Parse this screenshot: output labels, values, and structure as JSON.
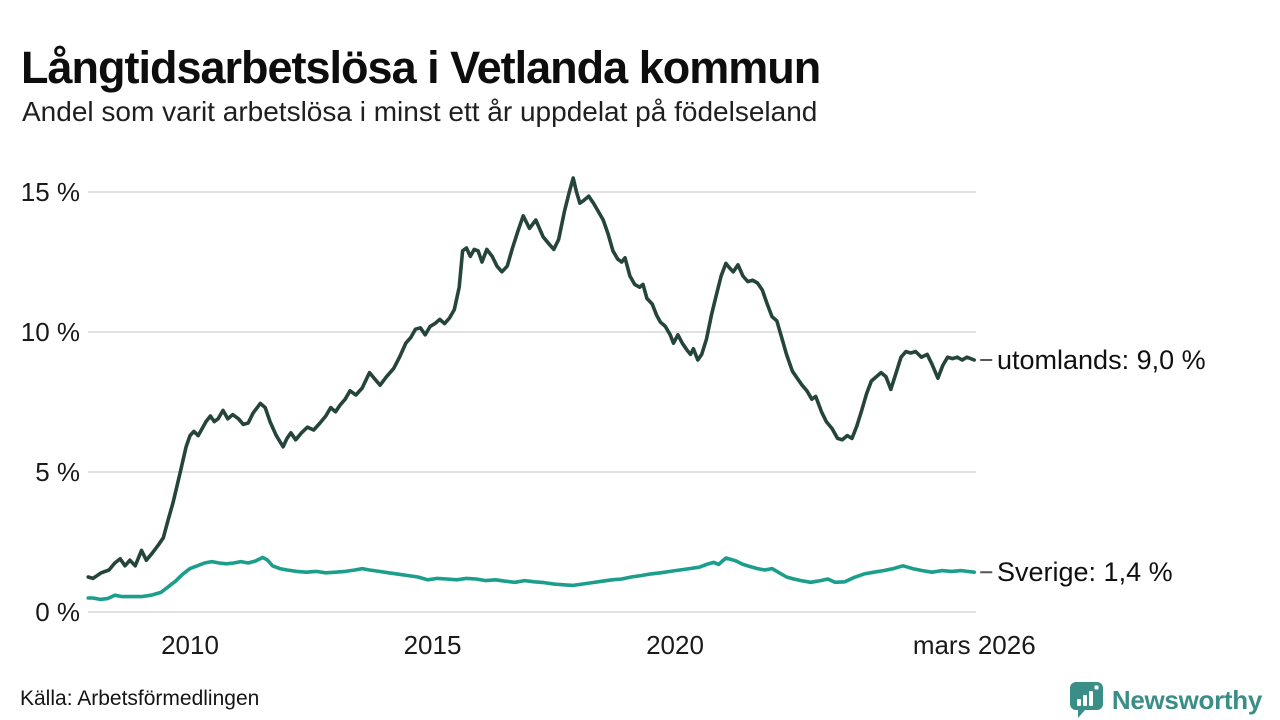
{
  "header": {
    "title": "Långtidsarbetslösa i Vetlanda kommun",
    "subtitle": "Andel som varit arbetslösa i minst ett år uppdelat på födelseland"
  },
  "footer": {
    "source": "Källa: Arbetsförmedlingen",
    "brand": "Newsworthy"
  },
  "icons": {
    "brand_logo": "bar-chart-speech-bubble-icon"
  },
  "colors": {
    "series_utomlands": "#25453c",
    "series_sverige": "#1c9e8c",
    "gridline": "#e0e0e0",
    "label_connector": "#555555",
    "text": "#161616",
    "brand": "#3b8e87"
  },
  "chart_data": {
    "type": "line",
    "title": "Långtidsarbetslösa i Vetlanda kommun",
    "subtitle": "Andel som varit arbetslösa i minst ett år uppdelat på födelseland",
    "xlabel": "",
    "ylabel": "",
    "unit": "%",
    "xlim": [
      2007.9,
      2026.3
    ],
    "ylim": [
      0,
      16
    ],
    "grid": "horizontal",
    "legend_position": "right-of-line-end",
    "yticks": [
      {
        "value": 15,
        "label": "15 %"
      },
      {
        "value": 10,
        "label": "10 %"
      },
      {
        "value": 5,
        "label": "5 %"
      },
      {
        "value": 0,
        "label": "0 %"
      }
    ],
    "xticks": [
      {
        "value": 2010,
        "label": "2010"
      },
      {
        "value": 2015,
        "label": "2015"
      },
      {
        "value": 2020,
        "label": "2020"
      },
      {
        "value": 2026.17,
        "label": "mars 2026"
      }
    ],
    "source": "Källa: Arbetsförmedlingen",
    "series": [
      {
        "name": "utomlands",
        "label": "utomlands: 9,0 %",
        "last_value_label": "9,0 %",
        "color": "#25453c",
        "points": [
          [
            2007.9,
            1.25
          ],
          [
            2008.0,
            1.2
          ],
          [
            2008.17,
            1.4
          ],
          [
            2008.33,
            1.5
          ],
          [
            2008.45,
            1.75
          ],
          [
            2008.56,
            1.9
          ],
          [
            2008.66,
            1.65
          ],
          [
            2008.76,
            1.85
          ],
          [
            2008.87,
            1.65
          ],
          [
            2009.0,
            2.2
          ],
          [
            2009.1,
            1.85
          ],
          [
            2009.22,
            2.1
          ],
          [
            2009.35,
            2.4
          ],
          [
            2009.45,
            2.65
          ],
          [
            2009.55,
            3.3
          ],
          [
            2009.65,
            3.9
          ],
          [
            2009.8,
            5.0
          ],
          [
            2009.92,
            5.9
          ],
          [
            2010.0,
            6.3
          ],
          [
            2010.08,
            6.45
          ],
          [
            2010.17,
            6.3
          ],
          [
            2010.25,
            6.55
          ],
          [
            2010.33,
            6.8
          ],
          [
            2010.42,
            7.0
          ],
          [
            2010.5,
            6.8
          ],
          [
            2010.58,
            6.9
          ],
          [
            2010.68,
            7.2
          ],
          [
            2010.78,
            6.9
          ],
          [
            2010.88,
            7.05
          ],
          [
            2011.0,
            6.9
          ],
          [
            2011.1,
            6.7
          ],
          [
            2011.2,
            6.75
          ],
          [
            2011.3,
            7.1
          ],
          [
            2011.45,
            7.45
          ],
          [
            2011.55,
            7.3
          ],
          [
            2011.65,
            6.8
          ],
          [
            2011.78,
            6.3
          ],
          [
            2011.92,
            5.9
          ],
          [
            2012.0,
            6.2
          ],
          [
            2012.08,
            6.4
          ],
          [
            2012.18,
            6.15
          ],
          [
            2012.3,
            6.4
          ],
          [
            2012.42,
            6.6
          ],
          [
            2012.55,
            6.5
          ],
          [
            2012.68,
            6.75
          ],
          [
            2012.8,
            7.0
          ],
          [
            2012.9,
            7.3
          ],
          [
            2013.0,
            7.15
          ],
          [
            2013.1,
            7.4
          ],
          [
            2013.2,
            7.6
          ],
          [
            2013.3,
            7.9
          ],
          [
            2013.42,
            7.75
          ],
          [
            2013.55,
            8.0
          ],
          [
            2013.7,
            8.55
          ],
          [
            2013.82,
            8.3
          ],
          [
            2013.92,
            8.1
          ],
          [
            2014.05,
            8.4
          ],
          [
            2014.2,
            8.7
          ],
          [
            2014.32,
            9.1
          ],
          [
            2014.45,
            9.6
          ],
          [
            2014.55,
            9.8
          ],
          [
            2014.65,
            10.1
          ],
          [
            2014.75,
            10.15
          ],
          [
            2014.85,
            9.9
          ],
          [
            2014.95,
            10.2
          ],
          [
            2015.05,
            10.3
          ],
          [
            2015.15,
            10.45
          ],
          [
            2015.25,
            10.3
          ],
          [
            2015.35,
            10.5
          ],
          [
            2015.45,
            10.8
          ],
          [
            2015.55,
            11.6
          ],
          [
            2015.62,
            12.9
          ],
          [
            2015.7,
            13.0
          ],
          [
            2015.78,
            12.7
          ],
          [
            2015.86,
            12.95
          ],
          [
            2015.94,
            12.9
          ],
          [
            2016.02,
            12.5
          ],
          [
            2016.12,
            12.95
          ],
          [
            2016.23,
            12.7
          ],
          [
            2016.33,
            12.35
          ],
          [
            2016.43,
            12.15
          ],
          [
            2016.54,
            12.35
          ],
          [
            2016.65,
            13.0
          ],
          [
            2016.76,
            13.6
          ],
          [
            2016.87,
            14.15
          ],
          [
            2017.0,
            13.7
          ],
          [
            2017.13,
            14.0
          ],
          [
            2017.28,
            13.4
          ],
          [
            2017.4,
            13.15
          ],
          [
            2017.5,
            12.95
          ],
          [
            2017.6,
            13.3
          ],
          [
            2017.72,
            14.3
          ],
          [
            2017.82,
            15.0
          ],
          [
            2017.9,
            15.5
          ],
          [
            2017.97,
            15.0
          ],
          [
            2018.04,
            14.6
          ],
          [
            2018.12,
            14.7
          ],
          [
            2018.22,
            14.85
          ],
          [
            2018.32,
            14.6
          ],
          [
            2018.42,
            14.3
          ],
          [
            2018.52,
            14.0
          ],
          [
            2018.62,
            13.5
          ],
          [
            2018.72,
            12.9
          ],
          [
            2018.82,
            12.6
          ],
          [
            2018.9,
            12.5
          ],
          [
            2018.97,
            12.65
          ],
          [
            2019.07,
            12.0
          ],
          [
            2019.17,
            11.7
          ],
          [
            2019.27,
            11.6
          ],
          [
            2019.34,
            11.7
          ],
          [
            2019.42,
            11.2
          ],
          [
            2019.53,
            11.0
          ],
          [
            2019.62,
            10.6
          ],
          [
            2019.7,
            10.35
          ],
          [
            2019.8,
            10.2
          ],
          [
            2019.9,
            9.9
          ],
          [
            2019.97,
            9.6
          ],
          [
            2020.06,
            9.9
          ],
          [
            2020.15,
            9.6
          ],
          [
            2020.25,
            9.35
          ],
          [
            2020.32,
            9.2
          ],
          [
            2020.38,
            9.4
          ],
          [
            2020.47,
            9.0
          ],
          [
            2020.55,
            9.2
          ],
          [
            2020.65,
            9.75
          ],
          [
            2020.75,
            10.6
          ],
          [
            2020.85,
            11.3
          ],
          [
            2020.95,
            12.0
          ],
          [
            2021.05,
            12.45
          ],
          [
            2021.12,
            12.3
          ],
          [
            2021.2,
            12.15
          ],
          [
            2021.3,
            12.4
          ],
          [
            2021.4,
            12.0
          ],
          [
            2021.5,
            11.8
          ],
          [
            2021.6,
            11.85
          ],
          [
            2021.7,
            11.75
          ],
          [
            2021.8,
            11.5
          ],
          [
            2021.9,
            11.0
          ],
          [
            2022.0,
            10.55
          ],
          [
            2022.1,
            10.4
          ],
          [
            2022.2,
            9.8
          ],
          [
            2022.3,
            9.2
          ],
          [
            2022.42,
            8.6
          ],
          [
            2022.52,
            8.35
          ],
          [
            2022.62,
            8.1
          ],
          [
            2022.72,
            7.9
          ],
          [
            2022.82,
            7.6
          ],
          [
            2022.9,
            7.7
          ],
          [
            2023.02,
            7.15
          ],
          [
            2023.12,
            6.8
          ],
          [
            2023.24,
            6.55
          ],
          [
            2023.35,
            6.2
          ],
          [
            2023.45,
            6.15
          ],
          [
            2023.55,
            6.3
          ],
          [
            2023.65,
            6.2
          ],
          [
            2023.75,
            6.65
          ],
          [
            2023.85,
            7.2
          ],
          [
            2023.95,
            7.8
          ],
          [
            2024.05,
            8.25
          ],
          [
            2024.15,
            8.4
          ],
          [
            2024.25,
            8.55
          ],
          [
            2024.35,
            8.4
          ],
          [
            2024.45,
            7.95
          ],
          [
            2024.56,
            8.55
          ],
          [
            2024.66,
            9.1
          ],
          [
            2024.76,
            9.3
          ],
          [
            2024.86,
            9.25
          ],
          [
            2024.96,
            9.3
          ],
          [
            2025.08,
            9.1
          ],
          [
            2025.2,
            9.2
          ],
          [
            2025.3,
            8.85
          ],
          [
            2025.42,
            8.35
          ],
          [
            2025.52,
            8.8
          ],
          [
            2025.62,
            9.1
          ],
          [
            2025.72,
            9.05
          ],
          [
            2025.82,
            9.1
          ],
          [
            2025.92,
            9.0
          ],
          [
            2026.02,
            9.1
          ],
          [
            2026.17,
            9.0
          ]
        ]
      },
      {
        "name": "Sverige",
        "label": "Sverige: 1,4 %",
        "last_value_label": "1,4 %",
        "color": "#1c9e8c",
        "points": [
          [
            2007.9,
            0.5
          ],
          [
            2008.0,
            0.5
          ],
          [
            2008.15,
            0.45
          ],
          [
            2008.3,
            0.48
          ],
          [
            2008.45,
            0.6
          ],
          [
            2008.6,
            0.55
          ],
          [
            2008.8,
            0.55
          ],
          [
            2009.0,
            0.55
          ],
          [
            2009.2,
            0.6
          ],
          [
            2009.4,
            0.7
          ],
          [
            2009.55,
            0.9
          ],
          [
            2009.7,
            1.1
          ],
          [
            2009.85,
            1.35
          ],
          [
            2010.0,
            1.55
          ],
          [
            2010.15,
            1.65
          ],
          [
            2010.3,
            1.75
          ],
          [
            2010.45,
            1.8
          ],
          [
            2010.6,
            1.75
          ],
          [
            2010.75,
            1.72
          ],
          [
            2010.9,
            1.75
          ],
          [
            2011.05,
            1.8
          ],
          [
            2011.2,
            1.75
          ],
          [
            2011.35,
            1.82
          ],
          [
            2011.5,
            1.95
          ],
          [
            2011.6,
            1.85
          ],
          [
            2011.7,
            1.65
          ],
          [
            2011.85,
            1.55
          ],
          [
            2012.0,
            1.5
          ],
          [
            2012.2,
            1.45
          ],
          [
            2012.4,
            1.42
          ],
          [
            2012.6,
            1.45
          ],
          [
            2012.8,
            1.4
          ],
          [
            2013.0,
            1.42
          ],
          [
            2013.2,
            1.45
          ],
          [
            2013.4,
            1.5
          ],
          [
            2013.55,
            1.55
          ],
          [
            2013.7,
            1.5
          ],
          [
            2013.9,
            1.45
          ],
          [
            2014.1,
            1.4
          ],
          [
            2014.3,
            1.35
          ],
          [
            2014.5,
            1.3
          ],
          [
            2014.7,
            1.25
          ],
          [
            2014.9,
            1.15
          ],
          [
            2015.1,
            1.2
          ],
          [
            2015.3,
            1.18
          ],
          [
            2015.5,
            1.15
          ],
          [
            2015.7,
            1.2
          ],
          [
            2015.9,
            1.18
          ],
          [
            2016.1,
            1.12
          ],
          [
            2016.3,
            1.15
          ],
          [
            2016.5,
            1.1
          ],
          [
            2016.7,
            1.06
          ],
          [
            2016.9,
            1.12
          ],
          [
            2017.1,
            1.08
          ],
          [
            2017.3,
            1.05
          ],
          [
            2017.5,
            1.0
          ],
          [
            2017.7,
            0.97
          ],
          [
            2017.9,
            0.95
          ],
          [
            2018.1,
            1.0
          ],
          [
            2018.3,
            1.05
          ],
          [
            2018.5,
            1.1
          ],
          [
            2018.7,
            1.15
          ],
          [
            2018.9,
            1.18
          ],
          [
            2019.1,
            1.25
          ],
          [
            2019.3,
            1.3
          ],
          [
            2019.5,
            1.36
          ],
          [
            2019.7,
            1.4
          ],
          [
            2019.9,
            1.45
          ],
          [
            2020.1,
            1.5
          ],
          [
            2020.3,
            1.55
          ],
          [
            2020.5,
            1.6
          ],
          [
            2020.65,
            1.7
          ],
          [
            2020.8,
            1.77
          ],
          [
            2020.9,
            1.7
          ],
          [
            2021.05,
            1.93
          ],
          [
            2021.15,
            1.88
          ],
          [
            2021.25,
            1.83
          ],
          [
            2021.4,
            1.7
          ],
          [
            2021.55,
            1.62
          ],
          [
            2021.7,
            1.55
          ],
          [
            2021.85,
            1.5
          ],
          [
            2022.0,
            1.55
          ],
          [
            2022.15,
            1.4
          ],
          [
            2022.3,
            1.25
          ],
          [
            2022.45,
            1.18
          ],
          [
            2022.6,
            1.12
          ],
          [
            2022.8,
            1.06
          ],
          [
            2023.0,
            1.12
          ],
          [
            2023.15,
            1.18
          ],
          [
            2023.3,
            1.06
          ],
          [
            2023.5,
            1.08
          ],
          [
            2023.7,
            1.24
          ],
          [
            2023.9,
            1.36
          ],
          [
            2024.1,
            1.42
          ],
          [
            2024.3,
            1.48
          ],
          [
            2024.5,
            1.55
          ],
          [
            2024.7,
            1.65
          ],
          [
            2024.9,
            1.55
          ],
          [
            2025.1,
            1.48
          ],
          [
            2025.3,
            1.42
          ],
          [
            2025.5,
            1.48
          ],
          [
            2025.7,
            1.45
          ],
          [
            2025.9,
            1.48
          ],
          [
            2026.17,
            1.42
          ]
        ]
      }
    ]
  }
}
